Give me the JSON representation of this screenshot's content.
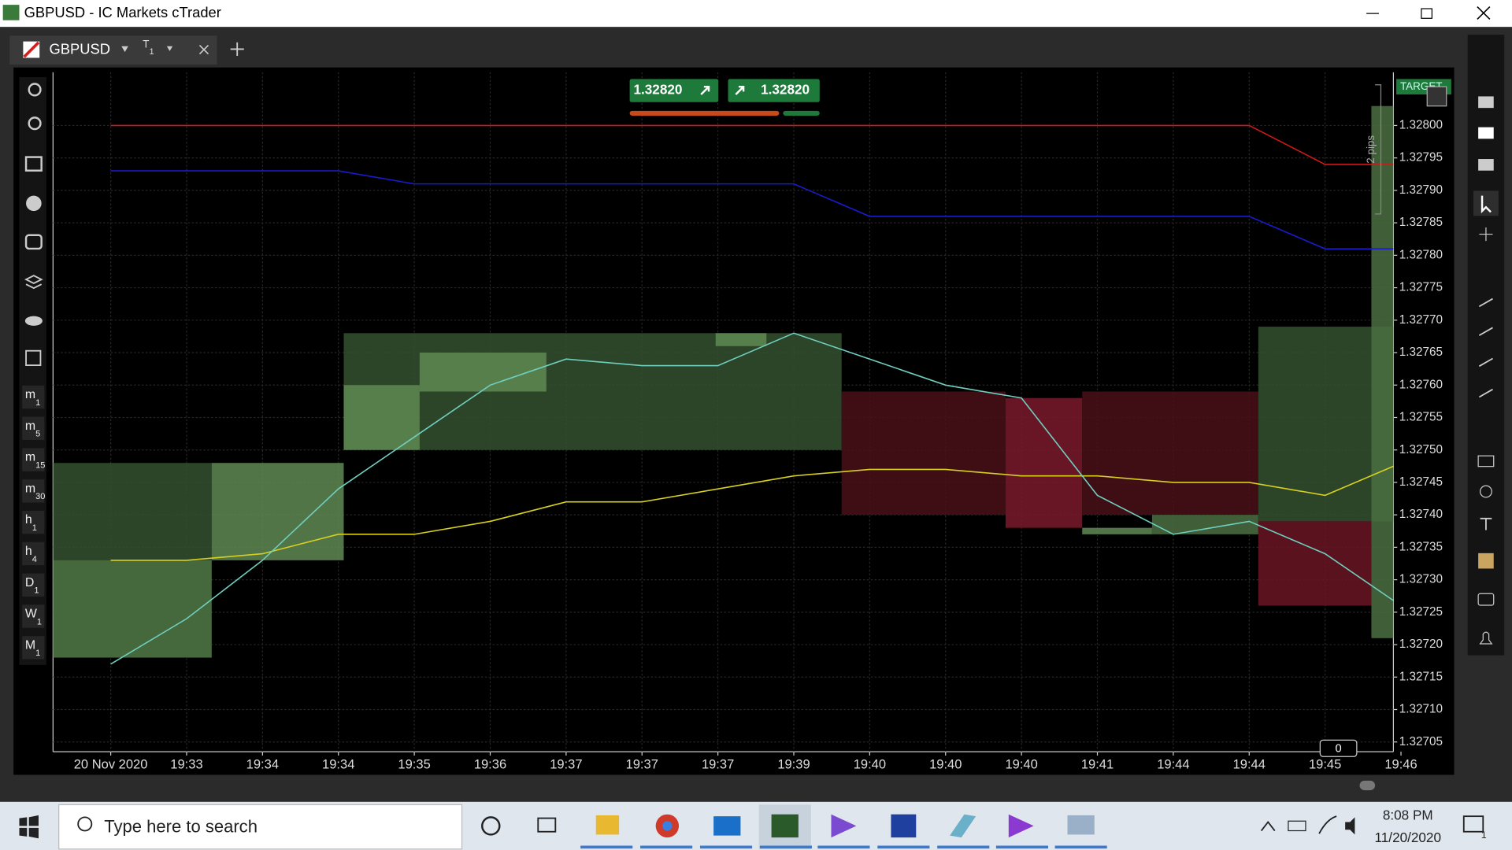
{
  "window": {
    "title": "GBPUSD - IC Markets cTrader"
  },
  "tab": {
    "symbol": "GBPUSD",
    "timeframe": {
      "main": "T",
      "sub": "1"
    }
  },
  "timeframes": [
    {
      "main": "m",
      "sub": "1"
    },
    {
      "main": "m",
      "sub": "5"
    },
    {
      "main": "m",
      "sub": "15"
    },
    {
      "main": "m",
      "sub": "30"
    },
    {
      "main": "h",
      "sub": "1"
    },
    {
      "main": "h",
      "sub": "4"
    },
    {
      "main": "D",
      "sub": "1"
    },
    {
      "main": "W",
      "sub": "1"
    },
    {
      "main": "M",
      "sub": "1"
    }
  ],
  "quotes": {
    "bid": "1.32820",
    "ask": "1.32820"
  },
  "target_label": "TARGET",
  "pips_label": "2 pips",
  "counter": "0",
  "chart_data": {
    "type": "line",
    "grid": true,
    "xlim": [
      -0.76,
      16.9
    ],
    "ylim": [
      1.327035,
      1.328082
    ],
    "x": [
      0,
      1,
      2,
      3,
      4,
      5,
      6,
      7,
      8,
      9,
      10,
      11,
      12,
      13,
      14,
      15,
      16,
      17
    ],
    "xticks": [
      {
        "value": 0,
        "label": "20 Nov 2020"
      },
      {
        "value": 1,
        "label": "19:33"
      },
      {
        "value": 2,
        "label": "19:34"
      },
      {
        "value": 3,
        "label": "19:34"
      },
      {
        "value": 4,
        "label": "19:35"
      },
      {
        "value": 5,
        "label": "19:36"
      },
      {
        "value": 6,
        "label": "19:37"
      },
      {
        "value": 7,
        "label": "19:37"
      },
      {
        "value": 8,
        "label": "19:37"
      },
      {
        "value": 9,
        "label": "19:39"
      },
      {
        "value": 10,
        "label": "19:40"
      },
      {
        "value": 11,
        "label": "19:40"
      },
      {
        "value": 12,
        "label": "19:40"
      },
      {
        "value": 13,
        "label": "19:41"
      },
      {
        "value": 14,
        "label": "19:44"
      },
      {
        "value": 15,
        "label": "19:44"
      },
      {
        "value": 16,
        "label": "19:45"
      },
      {
        "value": 17,
        "label": "19:46"
      }
    ],
    "yticks": [
      {
        "value": 1.328,
        "label": "1.32800"
      },
      {
        "value": 1.32795,
        "label": "1.32795"
      },
      {
        "value": 1.3279,
        "label": "1.32790"
      },
      {
        "value": 1.32785,
        "label": "1.32785"
      },
      {
        "value": 1.3278,
        "label": "1.32780"
      },
      {
        "value": 1.32775,
        "label": "1.32775"
      },
      {
        "value": 1.3277,
        "label": "1.32770"
      },
      {
        "value": 1.32765,
        "label": "1.32765"
      },
      {
        "value": 1.3276,
        "label": "1.32760"
      },
      {
        "value": 1.32755,
        "label": "1.32755"
      },
      {
        "value": 1.3275,
        "label": "1.32750"
      },
      {
        "value": 1.32745,
        "label": "1.32745"
      },
      {
        "value": 1.3274,
        "label": "1.32740"
      },
      {
        "value": 1.32735,
        "label": "1.32735"
      },
      {
        "value": 1.3273,
        "label": "1.32730"
      },
      {
        "value": 1.32725,
        "label": "1.32725"
      },
      {
        "value": 1.3272,
        "label": "1.32720"
      },
      {
        "value": 1.32715,
        "label": "1.32715"
      },
      {
        "value": 1.3271,
        "label": "1.32710"
      },
      {
        "value": 1.32705,
        "label": "1.32705"
      }
    ],
    "boxes": [
      {
        "x": [
          -0.76,
          1.33
        ],
        "low": 1.32718,
        "high": 1.32748,
        "color": "#34502f"
      },
      {
        "x": [
          -0.76,
          1.33
        ],
        "low": 1.32718,
        "high": 1.32733,
        "color": "#4b6e41"
      },
      {
        "x": [
          1.33,
          3.07
        ],
        "low": 1.32733,
        "high": 1.32748,
        "color": "#5f8a52"
      },
      {
        "x": [
          3.07,
          9.63
        ],
        "low": 1.3275,
        "high": 1.32768,
        "color": "#34502f"
      },
      {
        "x": [
          3.07,
          4.07
        ],
        "low": 1.3275,
        "high": 1.3276,
        "color": "#5f8a52"
      },
      {
        "x": [
          4.07,
          5.74
        ],
        "low": 1.32759,
        "high": 1.32765,
        "color": "#5f8a52"
      },
      {
        "x": [
          7.97,
          8.64
        ],
        "low": 1.32766,
        "high": 1.32768,
        "color": "#5f8a52"
      },
      {
        "x": [
          9.63,
          11.79
        ],
        "low": 1.3274,
        "high": 1.32759,
        "color": "#4a1019"
      },
      {
        "x": [
          11.79,
          12.8
        ],
        "low": 1.32738,
        "high": 1.32758,
        "color": "#7a1a2c"
      },
      {
        "x": [
          12.8,
          15.12
        ],
        "low": 1.3274,
        "high": 1.32759,
        "color": "#4a1019"
      },
      {
        "x": [
          12.8,
          13.72
        ],
        "low": 1.32737,
        "high": 1.32738,
        "color": "#5f8a52"
      },
      {
        "x": [
          13.72,
          15.12
        ],
        "low": 1.32737,
        "high": 1.3274,
        "color": "#4b6e41"
      },
      {
        "x": [
          15.12,
          16.9
        ],
        "low": 1.32739,
        "high": 1.32769,
        "color": "#34502f"
      },
      {
        "x": [
          15.12,
          16.61
        ],
        "low": 1.32726,
        "high": 1.32739,
        "color": "#6a1525"
      },
      {
        "x": [
          16.61,
          16.9
        ],
        "low": 1.32721,
        "high": 1.32803,
        "color": "#4b6e41"
      }
    ],
    "series": [
      {
        "color": "#d01818",
        "values": [
          1.328,
          1.328,
          1.328,
          1.328,
          1.328,
          1.328,
          1.328,
          1.328,
          1.328,
          1.328,
          1.328,
          1.328,
          1.328,
          1.328,
          1.328,
          1.328,
          1.32794,
          1.32794
        ]
      },
      {
        "color": "#1a1ad0",
        "values": [
          1.32793,
          1.32793,
          1.32793,
          1.32793,
          1.32791,
          1.32791,
          1.32791,
          1.32791,
          1.32791,
          1.32791,
          1.32786,
          1.32786,
          1.32786,
          1.32786,
          1.32786,
          1.32786,
          1.32781,
          1.32781
        ]
      },
      {
        "color": "#d8d020",
        "values": [
          1.32733,
          1.32733,
          1.32734,
          1.32737,
          1.32737,
          1.32739,
          1.32742,
          1.32742,
          1.32744,
          1.32746,
          1.32747,
          1.32747,
          1.32746,
          1.32746,
          1.32745,
          1.32745,
          1.32743,
          1.32748
        ]
      },
      {
        "color": "#6fd0c0",
        "values": [
          1.32717,
          1.32724,
          1.32733,
          1.32744,
          1.32752,
          1.3276,
          1.32764,
          1.32763,
          1.32763,
          1.32768,
          1.32764,
          1.3276,
          1.32758,
          1.32743,
          1.32737,
          1.32739,
          1.32734,
          1.32726
        ]
      }
    ]
  },
  "taskbar": {
    "search": "Type here to search",
    "time": "8:08 PM",
    "date": "11/20/2020",
    "notifications": "1"
  }
}
